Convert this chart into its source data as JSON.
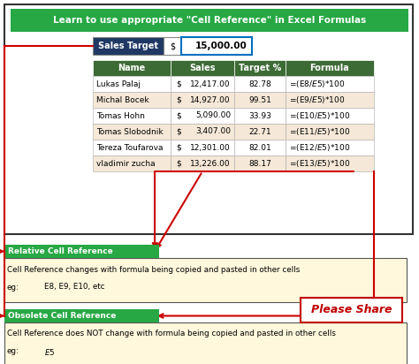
{
  "title": "Learn to use appropriate \"Cell Reference\" in Excel Formulas",
  "title_bg": "#27A844",
  "title_color": "#FFFFFF",
  "sales_target_label": "Sales Target",
  "sales_target_label_bg": "#1F3864",
  "sales_target_label_color": "#FFFFFF",
  "sales_target_value": "15,000.00",
  "sales_target_dollar": "$",
  "table_header": [
    "Name",
    "Sales",
    "Target %",
    "Formula"
  ],
  "table_header_bg": "#3D6B35",
  "table_header_color": "#FFFFFF",
  "table_rows": [
    [
      "Lukas Palaj",
      "$",
      "12,417.00",
      "82.78",
      "=(E8/$E$5)*100"
    ],
    [
      "Michal Bocek",
      "$",
      "14,927.00",
      "99.51",
      "=(E9/$E$5)*100"
    ],
    [
      "Tomas Hohn",
      "$",
      "5,090.00",
      "33.93",
      "=(E10/$E$5)*100"
    ],
    [
      "Tomas Slobodnik",
      "$",
      "3,407.00",
      "22.71",
      "=(E11/$E$5)*100"
    ],
    [
      "Tereza Toufarova",
      "$",
      "12,301.00",
      "82.01",
      "=(E12/$E$5)*100"
    ],
    [
      "vladimir zucha",
      "$",
      "13,226.00",
      "88.17",
      "=(E13/$E$5)*100"
    ]
  ],
  "row_bg_even": "#FFFFFF",
  "row_bg_odd": "#F5E8D8",
  "rel_label": "Relative Cell Reference",
  "rel_label_bg": "#27A844",
  "rel_label_color": "#FFFFFF",
  "rel_desc": "Cell Reference changes with formula being copied and pasted in other cells",
  "rel_eg": "E8, E9, E10, etc",
  "obs_label": "Obsolete Cell Reference",
  "obs_label_bg": "#27A844",
  "obs_label_color": "#FFFFFF",
  "obs_desc": "Cell Reference does NOT change with formula being copied and pasted in other cells",
  "obs_eg": "$E$5",
  "box_bg": "#FFF8DC",
  "please_share": "Please Share",
  "please_share_color": "#C00000",
  "please_share_box_color": "#C8B4C8",
  "border_color": "#555555",
  "arrow_color": "#CC0000",
  "outer_border": "#333333",
  "sales_border_color": "#0070C0",
  "fig_bg": "#FFFFFF"
}
